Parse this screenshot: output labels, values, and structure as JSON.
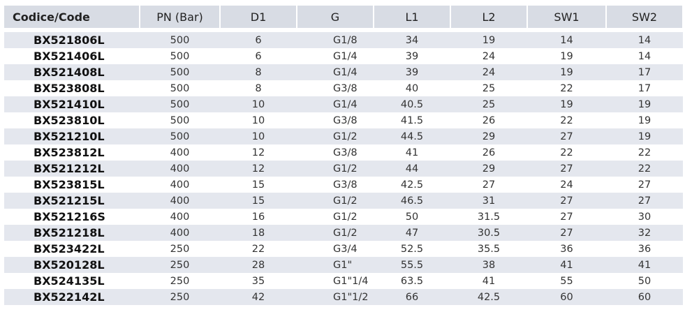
{
  "table": {
    "header": [
      "Codice/Code",
      "PN (Bar)",
      "D1",
      "G",
      "L1",
      "L2",
      "SW1",
      "SW2"
    ],
    "rows": [
      [
        "BX521806L",
        500,
        6,
        "G1/8",
        34,
        19,
        14,
        14
      ],
      [
        "BX521406L",
        500,
        6,
        "G1/4",
        39,
        24,
        19,
        14
      ],
      [
        "BX521408L",
        500,
        8,
        "G1/4",
        39,
        24,
        19,
        17
      ],
      [
        "BX523808L",
        500,
        8,
        "G3/8",
        40,
        25,
        22,
        17
      ],
      [
        "BX521410L",
        500,
        10,
        "G1/4",
        40.5,
        25,
        19,
        19
      ],
      [
        "BX523810L",
        500,
        10,
        "G3/8",
        41.5,
        26,
        22,
        19
      ],
      [
        "BX521210L",
        500,
        10,
        "G1/2",
        44.5,
        29,
        27,
        19
      ],
      [
        "BX523812L",
        400,
        12,
        "G3/8",
        41,
        26,
        22,
        22
      ],
      [
        "BX521212L",
        400,
        12,
        "G1/2",
        44,
        29,
        27,
        22
      ],
      [
        "BX523815L",
        400,
        15,
        "G3/8",
        42.5,
        27,
        24,
        27
      ],
      [
        "BX521215L",
        400,
        15,
        "G1/2",
        46.5,
        31,
        27,
        27
      ],
      [
        "BX521216S",
        400,
        16,
        "G1/2",
        50,
        31.5,
        27,
        30
      ],
      [
        "BX521218L",
        400,
        18,
        "G1/2",
        47,
        30.5,
        27,
        32
      ],
      [
        "BX523422L",
        250,
        22,
        "G3/4",
        52.5,
        35.5,
        36,
        36
      ],
      [
        "BX520128L",
        250,
        28,
        "G1\"",
        55.5,
        38,
        41,
        41
      ],
      [
        "BX524135L",
        250,
        35,
        "G1\"1/4",
        63.5,
        41,
        55,
        50
      ],
      [
        "BX522142L",
        250,
        42,
        "G1\"1/2",
        66,
        42.5,
        60,
        60
      ]
    ]
  }
}
